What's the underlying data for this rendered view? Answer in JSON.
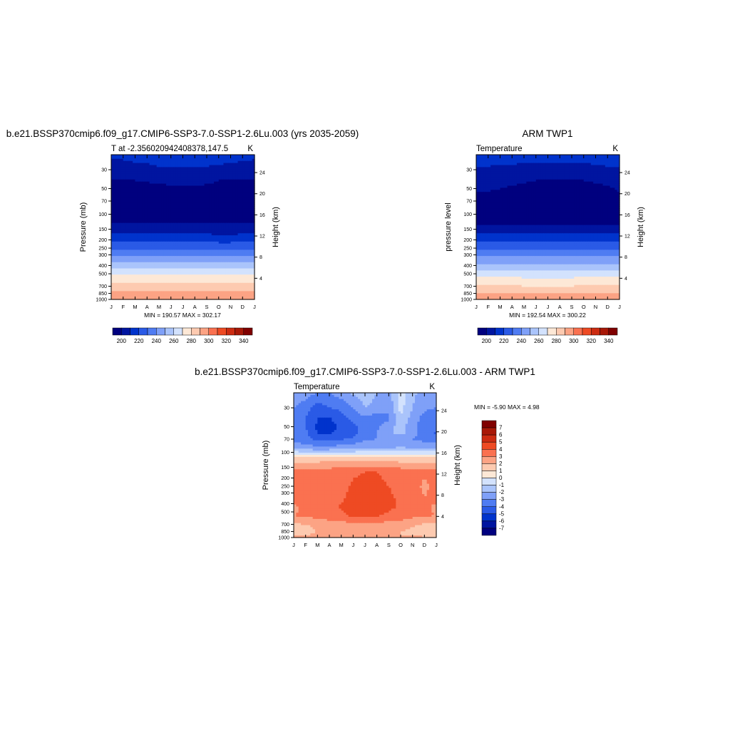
{
  "colors": {
    "temp_scale": [
      "#00007f",
      "#0015a0",
      "#0033cc",
      "#2a5ae6",
      "#4f7cf2",
      "#7fa0f8",
      "#aac4fb",
      "#d3e2fd",
      "#fde8d6",
      "#fdcab0",
      "#fca384",
      "#fa7150",
      "#ee4a23",
      "#cc2b11",
      "#a81807",
      "#800000"
    ],
    "diff_scale": [
      "#00007f",
      "#0015a0",
      "#0033cc",
      "#2a5ae6",
      "#4f7cf2",
      "#7fa0f8",
      "#aac4fb",
      "#d3e2fd",
      "#fde8d6",
      "#fdcab0",
      "#fca384",
      "#fa7150",
      "#ee4a23",
      "#cc2b11",
      "#a81807",
      "#800000"
    ]
  },
  "chart_data": [
    {
      "type": "heatmap",
      "id": "model",
      "title": "b.e21.BSSP370cmip6.f09_g17.CMIP6-SSP3-7.0-SSP1-2.6Lu.003 (yrs 2035-2059)",
      "left_label": "T at -2.356020942408378,147.5",
      "right_label": "K",
      "xlabel": "",
      "ylabel": "Pressure (mb)",
      "y2label": "Height (km)",
      "x_ticks": [
        "J",
        "F",
        "M",
        "A",
        "M",
        "J",
        "J",
        "A",
        "S",
        "O",
        "N",
        "D",
        "J"
      ],
      "y_ticks": [
        30,
        50,
        70,
        100,
        150,
        200,
        250,
        300,
        400,
        500,
        700,
        850,
        1000
      ],
      "y2_ticks": [
        4,
        8,
        12,
        16,
        20,
        24
      ],
      "ylim": [
        20,
        1000
      ],
      "minmax": "MIN = 190.57  MAX = 302.17",
      "levels": [
        200,
        210,
        220,
        230,
        240,
        250,
        260,
        270,
        280,
        290,
        300,
        310,
        320,
        330,
        340
      ],
      "colorbar_labels": [
        200,
        220,
        240,
        260,
        280,
        300,
        320,
        340
      ],
      "z": [
        {
          "p": 20,
          "v": [
            212,
            212,
            213,
            213,
            214,
            214,
            214,
            214,
            214,
            214,
            214,
            213,
            212
          ]
        },
        {
          "p": 30,
          "v": [
            206,
            206,
            207,
            208,
            209,
            209,
            209,
            209,
            209,
            208,
            207,
            206,
            206
          ]
        },
        {
          "p": 40,
          "v": [
            199,
            199,
            200,
            201,
            202,
            203,
            203,
            203,
            202,
            200,
            199,
            199,
            199
          ]
        },
        {
          "p": 50,
          "v": [
            196,
            196,
            196,
            197,
            197,
            198,
            198,
            198,
            198,
            197,
            196,
            196,
            196
          ]
        },
        {
          "p": 70,
          "v": [
            194,
            194,
            194,
            194,
            194,
            195,
            195,
            195,
            195,
            195,
            195,
            194,
            194
          ]
        },
        {
          "p": 100,
          "v": [
            195,
            195,
            195,
            194,
            194,
            195,
            195,
            195,
            195,
            195,
            195,
            195,
            195
          ]
        },
        {
          "p": 125,
          "v": [
            199,
            199,
            199,
            199,
            199,
            199,
            199,
            199,
            199,
            199,
            199,
            199,
            199
          ]
        },
        {
          "p": 150,
          "v": [
            204,
            204,
            204,
            204,
            204,
            204,
            204,
            204,
            204,
            204,
            204,
            204,
            204
          ]
        },
        {
          "p": 200,
          "v": [
            217,
            217,
            217,
            217,
            217,
            217,
            217,
            217,
            217,
            216,
            216,
            217,
            217
          ]
        },
        {
          "p": 250,
          "v": [
            229,
            229,
            229,
            229,
            229,
            229,
            229,
            229,
            229,
            228,
            228,
            229,
            229
          ]
        },
        {
          "p": 300,
          "v": [
            238,
            238,
            238,
            239,
            239,
            239,
            238,
            238,
            238,
            237,
            237,
            238,
            238
          ]
        },
        {
          "p": 400,
          "v": [
            255,
            255,
            255,
            256,
            256,
            256,
            256,
            256,
            256,
            255,
            255,
            255,
            255
          ]
        },
        {
          "p": 500,
          "v": [
            268,
            268,
            268,
            268,
            268,
            268,
            268,
            268,
            268,
            268,
            268,
            268,
            268
          ]
        },
        {
          "p": 700,
          "v": [
            283,
            283,
            283,
            283,
            283,
            283,
            283,
            283,
            283,
            283,
            283,
            283,
            283
          ]
        },
        {
          "p": 850,
          "v": [
            292,
            292,
            292,
            292,
            292,
            292,
            292,
            292,
            292,
            292,
            292,
            292,
            292
          ]
        },
        {
          "p": 950,
          "v": [
            299,
            299,
            299,
            299,
            299,
            299,
            299,
            299,
            299,
            299,
            299,
            299,
            299
          ]
        },
        {
          "p": 1000,
          "v": [
            301,
            301,
            301,
            301,
            301,
            301,
            301,
            301,
            301,
            301,
            301,
            301,
            301
          ]
        }
      ]
    },
    {
      "type": "heatmap",
      "id": "obs",
      "title": "ARM TWP1",
      "left_label": "Temperature",
      "right_label": "K",
      "xlabel": "",
      "ylabel": "pressure level",
      "y2label": "Height (km)",
      "x_ticks": [
        "J",
        "F",
        "M",
        "A",
        "M",
        "J",
        "J",
        "A",
        "S",
        "O",
        "N",
        "D",
        "J"
      ],
      "y_ticks": [
        30,
        50,
        70,
        100,
        150,
        200,
        250,
        300,
        400,
        500,
        700,
        850,
        1000
      ],
      "y2_ticks": [
        4,
        8,
        12,
        16,
        20,
        24
      ],
      "ylim": [
        20,
        1000
      ],
      "minmax": "MIN = 192.54  MAX = 300.22",
      "levels": [
        200,
        210,
        220,
        230,
        240,
        250,
        260,
        270,
        280,
        290,
        300,
        310,
        320,
        330,
        340
      ],
      "colorbar_labels": [
        200,
        220,
        240,
        260,
        280,
        300,
        320,
        340
      ],
      "z": [
        {
          "p": 20,
          "v": [
            214,
            214,
            214,
            214,
            214,
            214,
            214,
            214,
            214,
            214,
            214,
            214,
            214
          ]
        },
        {
          "p": 30,
          "v": [
            209,
            209,
            208,
            208,
            207,
            206,
            206,
            206,
            206,
            207,
            208,
            209,
            209
          ]
        },
        {
          "p": 40,
          "v": [
            204,
            204,
            203,
            202,
            201,
            200,
            199,
            199,
            199,
            200,
            201,
            202,
            204
          ]
        },
        {
          "p": 50,
          "v": [
            201,
            201,
            200,
            199,
            198,
            197,
            196,
            196,
            196,
            197,
            198,
            199,
            201
          ]
        },
        {
          "p": 70,
          "v": [
            197,
            197,
            196,
            196,
            195,
            195,
            194,
            193,
            193,
            194,
            195,
            196,
            197
          ]
        },
        {
          "p": 100,
          "v": [
            195,
            195,
            195,
            195,
            195,
            195,
            195,
            194,
            194,
            195,
            195,
            195,
            195
          ]
        },
        {
          "p": 125,
          "v": [
            198,
            198,
            198,
            198,
            198,
            198,
            198,
            198,
            198,
            198,
            198,
            198,
            198
          ]
        },
        {
          "p": 150,
          "v": [
            204,
            204,
            204,
            204,
            204,
            204,
            204,
            204,
            204,
            204,
            204,
            204,
            204
          ]
        },
        {
          "p": 200,
          "v": [
            218,
            218,
            218,
            218,
            218,
            218,
            218,
            218,
            218,
            218,
            218,
            218,
            218
          ]
        },
        {
          "p": 250,
          "v": [
            229,
            229,
            229,
            229,
            229,
            229,
            229,
            229,
            229,
            229,
            229,
            229,
            229
          ]
        },
        {
          "p": 300,
          "v": [
            238,
            238,
            238,
            238,
            238,
            238,
            238,
            238,
            238,
            238,
            238,
            238,
            238
          ]
        },
        {
          "p": 400,
          "v": [
            253,
            253,
            253,
            253,
            253,
            253,
            253,
            253,
            253,
            253,
            253,
            253,
            253
          ]
        },
        {
          "p": 500,
          "v": [
            266,
            266,
            266,
            266,
            265,
            265,
            265,
            265,
            265,
            266,
            266,
            266,
            266
          ]
        },
        {
          "p": 700,
          "v": [
            281,
            281,
            281,
            281,
            280,
            280,
            280,
            280,
            280,
            281,
            281,
            281,
            281
          ]
        },
        {
          "p": 850,
          "v": [
            290,
            290,
            290,
            290,
            290,
            290,
            290,
            290,
            290,
            290,
            290,
            290,
            290
          ]
        },
        {
          "p": 1000,
          "v": [
            297,
            297,
            297,
            297,
            297,
            297,
            297,
            297,
            297,
            297,
            297,
            297,
            297
          ]
        }
      ]
    },
    {
      "type": "heatmap",
      "id": "diff",
      "title": "b.e21.BSSP370cmip6.f09_g17.CMIP6-SSP3-7.0-SSP1-2.6Lu.003 - ARM TWP1",
      "left_label": "Temperature",
      "right_label": "K",
      "xlabel": "",
      "ylabel": "Pressure (mb)",
      "y2label": "Height (km)",
      "x_ticks": [
        "J",
        "F",
        "M",
        "A",
        "M",
        "J",
        "J",
        "A",
        "S",
        "O",
        "N",
        "D",
        "J"
      ],
      "y_ticks": [
        30,
        50,
        70,
        100,
        150,
        200,
        250,
        300,
        400,
        500,
        700,
        850,
        1000
      ],
      "y2_ticks": [
        4,
        8,
        12,
        16,
        20,
        24
      ],
      "ylim": [
        20,
        1000
      ],
      "minmax": "MIN =  -5.90 MAX =   4.98",
      "levels": [
        -7,
        -6,
        -5,
        -4,
        -3,
        -2,
        -1,
        0,
        1,
        2,
        3,
        4,
        5,
        6,
        7
      ],
      "colorbar_labels": [
        7,
        6,
        5,
        4,
        3,
        2,
        1,
        0,
        -1,
        -2,
        -3,
        -4,
        -5,
        -6,
        -7
      ],
      "z": [
        {
          "p": 20,
          "v": [
            -2.2,
            -2.6,
            -3.0,
            -3.0,
            -2.5,
            -1.8,
            -1.5,
            -2.0,
            -2.4,
            -0.5,
            -1.8,
            -2.4,
            -2.2
          ]
        },
        {
          "p": 30,
          "v": [
            -3.0,
            -3.5,
            -4.5,
            -4.0,
            -3.8,
            -3.0,
            -2.0,
            -2.3,
            -2.8,
            -0.6,
            -2.0,
            -2.8,
            -3.0
          ]
        },
        {
          "p": 40,
          "v": [
            -3.6,
            -4.0,
            -5.0,
            -5.1,
            -4.3,
            -3.8,
            -3.2,
            -3.6,
            -3.2,
            -1.2,
            -2.4,
            -3.4,
            -3.6
          ]
        },
        {
          "p": 50,
          "v": [
            -3.4,
            -4.0,
            -5.2,
            -5.4,
            -4.8,
            -4.2,
            -3.6,
            -3.2,
            -2.4,
            -1.6,
            -2.6,
            -3.6,
            -3.4
          ]
        },
        {
          "p": 60,
          "v": [
            -3.3,
            -3.8,
            -5.0,
            -5.1,
            -4.6,
            -4.4,
            -3.6,
            -3.0,
            -2.2,
            -1.8,
            -2.4,
            -3.6,
            -4.2
          ]
        },
        {
          "p": 70,
          "v": [
            -3.5,
            -3.6,
            -4.4,
            -4.4,
            -4.1,
            -3.8,
            -3.1,
            -3.0,
            -2.6,
            -2.5,
            -3.0,
            -3.4,
            -3.5
          ]
        },
        {
          "p": 90,
          "v": [
            -2.2,
            -2.4,
            -2.6,
            -2.5,
            -2.4,
            -2.3,
            -2.1,
            -2.1,
            -2.0,
            -1.9,
            -2.0,
            -2.1,
            -2.2
          ]
        },
        {
          "p": 110,
          "v": [
            0.6,
            0.6,
            0.6,
            0.6,
            0.6,
            0.6,
            0.6,
            0.6,
            0.6,
            0.6,
            0.6,
            0.6,
            0.6
          ]
        },
        {
          "p": 140,
          "v": [
            2.6,
            2.6,
            2.6,
            2.7,
            2.7,
            2.7,
            2.7,
            2.7,
            2.7,
            2.6,
            2.6,
            2.5,
            2.6
          ]
        },
        {
          "p": 170,
          "v": [
            3.2,
            3.3,
            3.3,
            3.3,
            3.4,
            3.8,
            4.0,
            4.0,
            3.6,
            3.4,
            3.3,
            3.2,
            3.2
          ]
        },
        {
          "p": 250,
          "v": [
            3.3,
            3.3,
            3.4,
            3.4,
            3.6,
            4.2,
            4.4,
            4.4,
            4.0,
            3.6,
            3.4,
            2.8,
            3.3
          ]
        },
        {
          "p": 350,
          "v": [
            3.3,
            3.3,
            3.4,
            3.6,
            3.9,
            4.3,
            4.6,
            4.6,
            4.2,
            3.8,
            3.6,
            3.0,
            3.3
          ]
        },
        {
          "p": 450,
          "v": [
            2.8,
            3.2,
            3.4,
            3.6,
            4.1,
            4.4,
            4.6,
            4.6,
            4.2,
            3.8,
            3.6,
            3.2,
            2.8
          ]
        },
        {
          "p": 550,
          "v": [
            3.0,
            3.2,
            3.3,
            3.5,
            3.8,
            4.2,
            4.3,
            4.1,
            3.8,
            3.5,
            3.3,
            3.2,
            3.0
          ]
        },
        {
          "p": 650,
          "v": [
            2.1,
            2.4,
            2.7,
            2.9,
            3.0,
            3.1,
            3.2,
            3.1,
            3.0,
            2.9,
            2.6,
            2.2,
            2.1
          ]
        },
        {
          "p": 750,
          "v": [
            1.5,
            1.8,
            2.2,
            2.5,
            2.6,
            2.6,
            2.7,
            2.6,
            2.6,
            2.5,
            2.0,
            1.6,
            1.5
          ]
        },
        {
          "p": 850,
          "v": [
            1.6,
            1.7,
            2.0,
            2.2,
            2.4,
            2.4,
            2.4,
            2.4,
            2.4,
            2.0,
            1.8,
            1.6,
            1.6
          ]
        },
        {
          "p": 950,
          "v": [
            1.8,
            2.0,
            2.2,
            2.4,
            2.5,
            2.5,
            2.4,
            2.4,
            2.3,
            2.0,
            1.8,
            1.8,
            1.8
          ]
        },
        {
          "p": 1000,
          "v": [
            2.2,
            2.4,
            2.6,
            2.7,
            2.9,
            3.0,
            3.0,
            2.9,
            2.7,
            2.6,
            2.4,
            2.2,
            2.2
          ]
        }
      ]
    }
  ]
}
